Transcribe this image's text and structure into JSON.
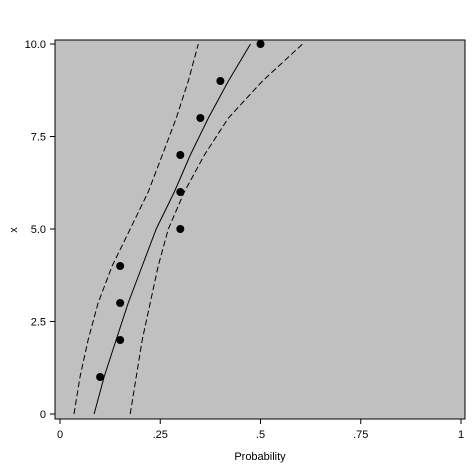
{
  "chart_data": {
    "type": "scatter",
    "title": "",
    "xlabel": "Probability",
    "ylabel": "x",
    "xlim": [
      0,
      1
    ],
    "ylim": [
      0,
      10
    ],
    "x_ticks": [
      {
        "value": 0,
        "label": "0"
      },
      {
        "value": 0.25,
        "label": ".25"
      },
      {
        "value": 0.5,
        "label": ".5"
      },
      {
        "value": 0.75,
        "label": ".75"
      },
      {
        "value": 1,
        "label": "1"
      }
    ],
    "y_ticks": [
      {
        "value": 0,
        "label": "0"
      },
      {
        "value": 2.5,
        "label": "2.5"
      },
      {
        "value": 5,
        "label": "5.0"
      },
      {
        "value": 7.5,
        "label": "7.5"
      },
      {
        "value": 10,
        "label": "10.0"
      }
    ],
    "points": [
      {
        "x": 0.1,
        "y": 1
      },
      {
        "x": 0.15,
        "y": 2
      },
      {
        "x": 0.15,
        "y": 3
      },
      {
        "x": 0.15,
        "y": 4
      },
      {
        "x": 0.3,
        "y": 5
      },
      {
        "x": 0.3,
        "y": 6
      },
      {
        "x": 0.3,
        "y": 7
      },
      {
        "x": 0.35,
        "y": 8
      },
      {
        "x": 0.4,
        "y": 9
      },
      {
        "x": 0.5,
        "y": 10
      }
    ],
    "lines": [
      {
        "style": "solid",
        "points": [
          [
            0.085,
            0
          ],
          [
            0.11,
            1
          ],
          [
            0.14,
            2
          ],
          [
            0.17,
            3
          ],
          [
            0.205,
            4
          ],
          [
            0.24,
            5
          ],
          [
            0.285,
            6
          ],
          [
            0.325,
            7
          ],
          [
            0.37,
            8
          ],
          [
            0.42,
            9
          ],
          [
            0.475,
            10
          ]
        ]
      },
      {
        "style": "dashed",
        "points": [
          [
            0.035,
            0
          ],
          [
            0.05,
            1
          ],
          [
            0.07,
            2
          ],
          [
            0.095,
            3
          ],
          [
            0.13,
            4
          ],
          [
            0.175,
            5
          ],
          [
            0.22,
            6
          ],
          [
            0.255,
            7
          ],
          [
            0.29,
            8
          ],
          [
            0.32,
            9
          ],
          [
            0.345,
            10
          ]
        ]
      },
      {
        "style": "dashed",
        "points": [
          [
            0.175,
            0
          ],
          [
            0.19,
            1
          ],
          [
            0.205,
            2
          ],
          [
            0.225,
            3
          ],
          [
            0.245,
            4
          ],
          [
            0.27,
            5
          ],
          [
            0.31,
            6
          ],
          [
            0.36,
            7
          ],
          [
            0.42,
            8
          ],
          [
            0.505,
            9
          ],
          [
            0.605,
            10
          ]
        ]
      }
    ],
    "grid": false,
    "plot_background": "#c0c0c0",
    "marker_color": "#000000",
    "line_color": "#000000"
  }
}
